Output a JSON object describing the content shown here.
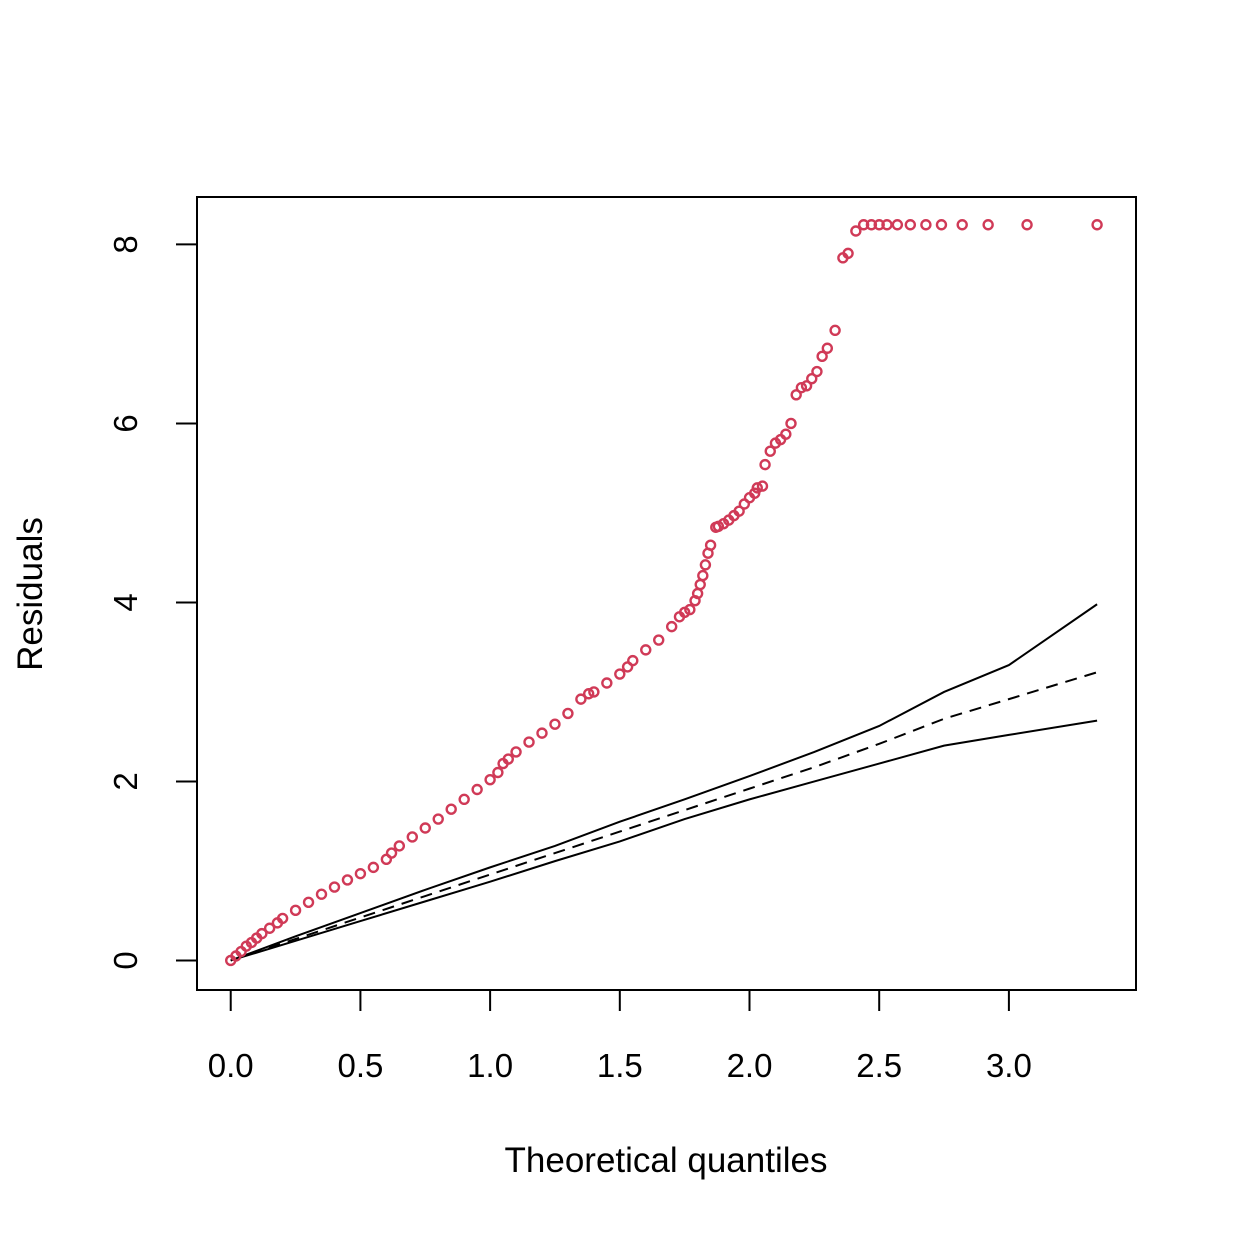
{
  "chart_data": {
    "type": "scatter",
    "title": "",
    "xlabel": "Theoretical quantiles",
    "ylabel": "Residuals",
    "xlim": [
      -0.13,
      3.49
    ],
    "ylim": [
      -0.33,
      8.53
    ],
    "x_ticks": [
      "0.0",
      "0.5",
      "1.0",
      "1.5",
      "2.0",
      "2.5",
      "3.0"
    ],
    "x_tick_values": [
      0,
      0.5,
      1.0,
      1.5,
      2.0,
      2.5,
      3.0
    ],
    "y_ticks": [
      "0",
      "2",
      "4",
      "6",
      "8"
    ],
    "y_tick_values": [
      0,
      2,
      4,
      6,
      8
    ],
    "grid": false,
    "legend": "none",
    "colors": {
      "points": "#d03a57",
      "lines": "#000000"
    },
    "series": [
      {
        "kind": "points",
        "x": [
          0,
          0.02,
          0.04,
          0.06,
          0.08,
          0.1,
          0.12,
          0.15,
          0.18,
          0.2,
          0.25,
          0.3,
          0.35,
          0.4,
          0.45,
          0.5,
          0.55,
          0.6,
          0.62,
          0.65,
          0.7,
          0.75,
          0.8,
          0.85,
          0.9,
          0.95,
          1.0,
          1.03,
          1.05,
          1.07,
          1.1,
          1.15,
          1.2,
          1.25,
          1.3,
          1.35,
          1.38,
          1.4,
          1.45,
          1.5,
          1.53,
          1.55,
          1.6,
          1.65,
          1.7,
          1.73,
          1.75,
          1.77,
          1.79,
          1.8,
          1.81,
          1.82,
          1.83,
          1.84,
          1.85,
          1.87,
          1.88,
          1.9,
          1.92,
          1.94,
          1.96,
          1.98,
          2.0,
          2.02,
          2.03,
          2.05,
          2.06,
          2.08,
          2.1,
          2.12,
          2.14,
          2.16,
          2.18,
          2.2,
          2.22,
          2.24,
          2.26,
          2.28,
          2.3,
          2.33,
          2.36,
          2.38,
          2.41,
          2.44,
          2.47,
          2.5,
          2.53,
          2.57,
          2.62,
          2.68,
          2.74,
          2.82,
          2.92,
          3.07,
          3.34
        ],
        "y": [
          0,
          0.05,
          0.1,
          0.16,
          0.2,
          0.25,
          0.3,
          0.36,
          0.42,
          0.47,
          0.56,
          0.65,
          0.74,
          0.82,
          0.9,
          0.97,
          1.04,
          1.13,
          1.2,
          1.28,
          1.38,
          1.48,
          1.58,
          1.69,
          1.8,
          1.91,
          2.02,
          2.1,
          2.2,
          2.25,
          2.33,
          2.44,
          2.54,
          2.64,
          2.76,
          2.92,
          2.98,
          3.0,
          3.1,
          3.2,
          3.28,
          3.35,
          3.47,
          3.58,
          3.73,
          3.84,
          3.89,
          3.92,
          4.02,
          4.1,
          4.2,
          4.3,
          4.42,
          4.55,
          4.64,
          4.84,
          4.85,
          4.88,
          4.92,
          4.97,
          5.02,
          5.1,
          5.17,
          5.22,
          5.28,
          5.3,
          5.54,
          5.69,
          5.78,
          5.82,
          5.88,
          6.0,
          6.32,
          6.4,
          6.42,
          6.5,
          6.58,
          6.75,
          6.84,
          7.04,
          7.85,
          7.9,
          8.15,
          8.22,
          8.22,
          8.22,
          8.22,
          8.22,
          8.22,
          8.22,
          8.22,
          8.22,
          8.22,
          8.22,
          8.22
        ]
      },
      {
        "kind": "line",
        "style": "solid",
        "x": [
          0,
          0.25,
          0.5,
          0.75,
          1.0,
          1.25,
          1.5,
          1.75,
          2.0,
          2.25,
          2.5,
          2.75,
          3.0,
          3.34
        ],
        "y": [
          0,
          0.27,
          0.53,
          0.79,
          1.04,
          1.28,
          1.55,
          1.8,
          2.06,
          2.33,
          2.62,
          3.0,
          3.3,
          3.98
        ]
      },
      {
        "kind": "line",
        "style": "dashed",
        "x": [
          0,
          0.25,
          0.5,
          0.75,
          1.0,
          1.25,
          1.5,
          1.75,
          2.0,
          2.25,
          2.5,
          2.75,
          3.0,
          3.34
        ],
        "y": [
          0,
          0.24,
          0.48,
          0.72,
          0.96,
          1.2,
          1.44,
          1.68,
          1.92,
          2.16,
          2.42,
          2.7,
          2.92,
          3.22
        ]
      },
      {
        "kind": "line",
        "style": "solid",
        "x": [
          0,
          0.25,
          0.5,
          0.75,
          1.0,
          1.25,
          1.5,
          1.75,
          2.0,
          2.25,
          2.5,
          2.75,
          3.0,
          3.34
        ],
        "y": [
          0,
          0.22,
          0.44,
          0.66,
          0.88,
          1.11,
          1.33,
          1.58,
          1.8,
          2.0,
          2.2,
          2.4,
          2.52,
          2.68
        ]
      }
    ]
  }
}
